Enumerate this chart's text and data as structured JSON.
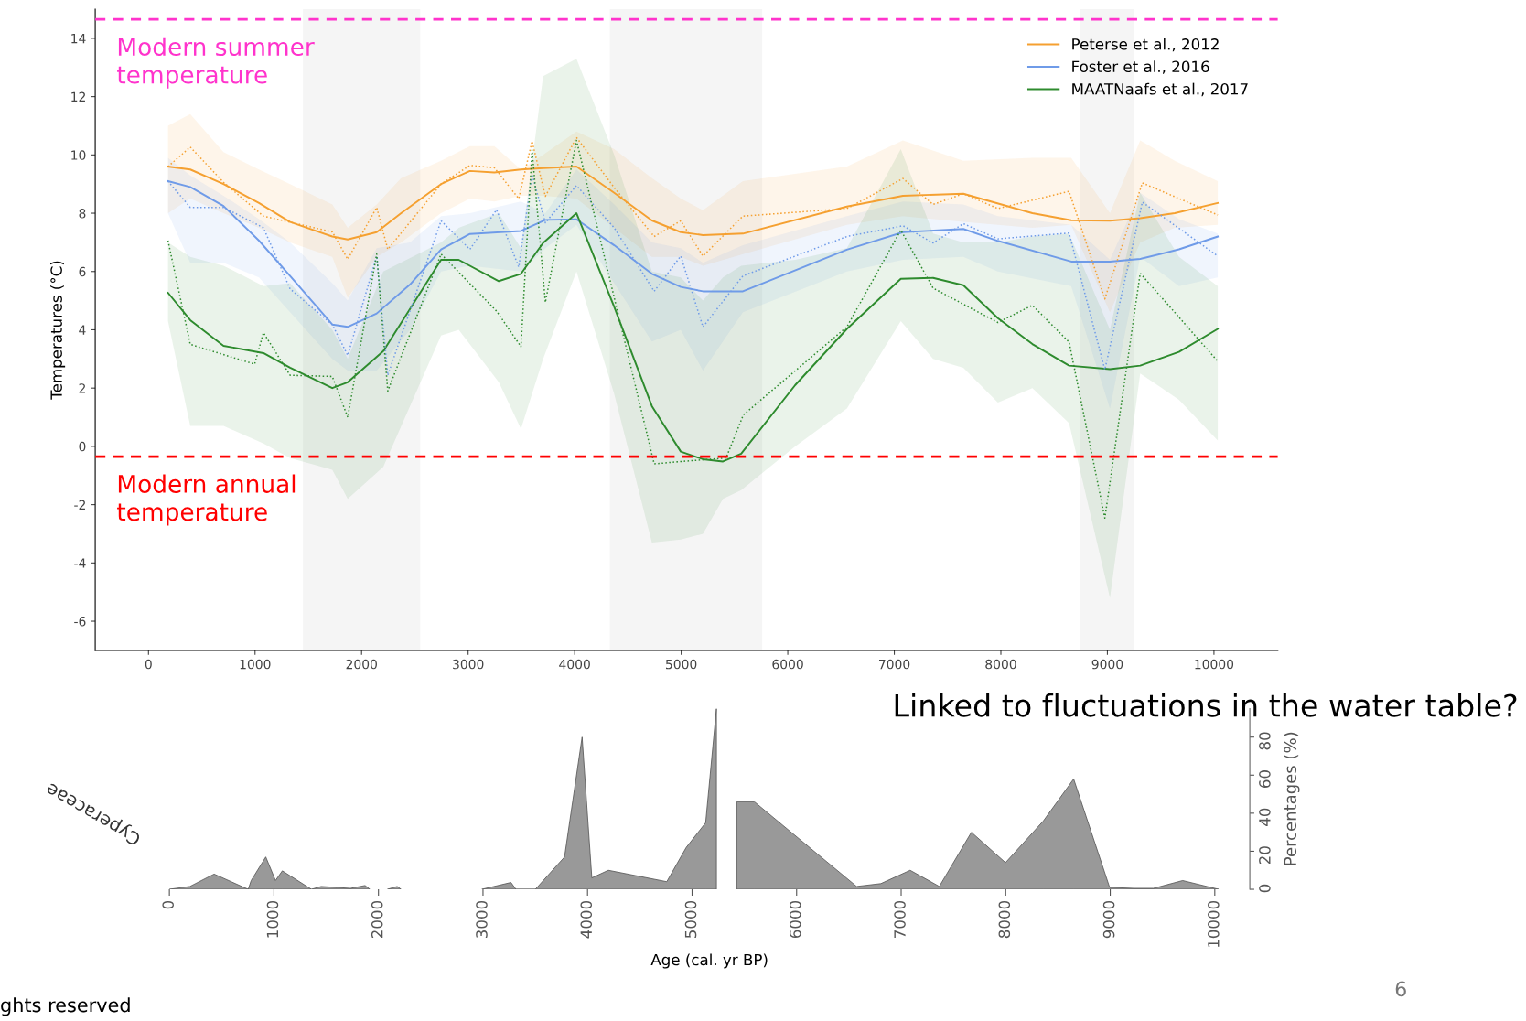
{
  "chart_data": [
    {
      "type": "line",
      "ylabel": "Temperatures (°C)",
      "xlim": [
        -500,
        10600
      ],
      "ylim": [
        -7,
        15
      ],
      "xticks": [
        0,
        1000,
        2000,
        3000,
        4000,
        5000,
        6000,
        7000,
        8000,
        9000,
        10000
      ],
      "yticks": [
        -6,
        -4,
        -2,
        0,
        2,
        4,
        6,
        8,
        10,
        12,
        14
      ],
      "legend": "top right",
      "bands": [
        {
          "axis": "x",
          "from": 1450,
          "to": 2550,
          "color": "#f5f5f5"
        },
        {
          "axis": "x",
          "from": 4330,
          "to": 5760,
          "color": "#f5f5f5"
        },
        {
          "axis": "x",
          "from": 8740,
          "to": 9250,
          "color": "#f5f5f5"
        }
      ],
      "ref_lines": [
        {
          "axis": "y",
          "value": 14.65,
          "label": "Modern summer\ntemperature",
          "color": "#ff33cc",
          "line_style": "dashed"
        },
        {
          "axis": "y",
          "value": -0.35,
          "label": "Modern annual\ntemperature",
          "color": "#ff0000",
          "line_style": "dashed"
        }
      ],
      "series": [
        {
          "name": "Peterse et al., 2012",
          "color": "#f5a030",
          "line_style": "solid",
          "x": [
            183,
            392,
            704,
            1037,
            1329,
            1725,
            1870,
            2142,
            2371,
            2746,
            3017,
            3246,
            3496,
            3704,
            4017,
            4371,
            4725,
            4996,
            5204,
            5579,
            6555,
            7081,
            7648,
            8296,
            8660,
            9024,
            9308,
            9632,
            10036
          ],
          "values": [
            9.6,
            9.5,
            9.0,
            8.35,
            7.7,
            7.2,
            7.1,
            7.35,
            8.0,
            9.0,
            9.45,
            9.4,
            9.5,
            9.55,
            9.6,
            8.7,
            7.75,
            7.35,
            7.25,
            7.3,
            8.23,
            8.6,
            8.67,
            8.0,
            7.76,
            7.74,
            7.83,
            8.0,
            8.35
          ],
          "upper": [
            11.0,
            11.4,
            10.1,
            9.5,
            9.0,
            8.3,
            7.5,
            8.3,
            9.2,
            9.8,
            10.3,
            10.3,
            9.5,
            10.0,
            10.8,
            10.2,
            9.2,
            8.5,
            8.1,
            9.1,
            9.6,
            10.5,
            9.8,
            9.9,
            9.9,
            8.0,
            10.5,
            9.8,
            9.1
          ],
          "lower": [
            8.0,
            8.5,
            8.0,
            7.5,
            7.0,
            6.5,
            5.1,
            6.5,
            7.0,
            8.0,
            8.5,
            8.4,
            8.6,
            8.6,
            8.5,
            7.5,
            6.5,
            6.5,
            6.2,
            6.6,
            7.6,
            7.9,
            7.7,
            7.5,
            7.6,
            4.6,
            7.0,
            7.5,
            7.6
          ]
        },
        {
          "name": "Foster et al., 2016",
          "color": "#6f9be8",
          "line_style": "solid",
          "x": [
            183,
            392,
            704,
            1037,
            1329,
            1725,
            1870,
            2142,
            2454,
            2746,
            3017,
            3496,
            3725,
            4017,
            4371,
            4725,
            4996,
            5204,
            5579,
            6555,
            7081,
            7648,
            7972,
            8660,
            9024,
            9308,
            9672,
            10036
          ],
          "values": [
            9.1,
            8.9,
            8.25,
            7.06,
            5.85,
            4.18,
            4.1,
            4.56,
            5.55,
            6.76,
            7.29,
            7.39,
            7.77,
            7.79,
            6.9,
            5.92,
            5.47,
            5.32,
            5.32,
            6.75,
            7.35,
            7.46,
            7.05,
            6.34,
            6.34,
            6.43,
            6.76,
            7.2
          ],
          "upper": [
            9.9,
            9.3,
            8.6,
            7.8,
            7.0,
            5.6,
            5.0,
            6.8,
            7.0,
            7.9,
            8.0,
            8.4,
            8.0,
            9.5,
            8.3,
            7.0,
            6.8,
            6.3,
            6.9,
            7.9,
            8.4,
            8.3,
            7.9,
            7.6,
            6.4,
            8.7,
            7.8,
            7.3
          ],
          "lower": [
            8.0,
            6.3,
            6.3,
            5.8,
            4.6,
            3.0,
            2.6,
            2.6,
            4.0,
            6.0,
            6.2,
            6.0,
            6.8,
            7.6,
            5.6,
            3.6,
            4.0,
            2.6,
            4.6,
            6.0,
            6.4,
            6.5,
            6.0,
            5.5,
            1.3,
            6.5,
            5.5,
            5.8
          ]
        },
        {
          "name": "MAATNaafs et al., 2017",
          "color": "#2e8b2e",
          "line_style": "solid",
          "x": [
            183,
            392,
            704,
            1079,
            1329,
            1725,
            1870,
            2204,
            2746,
            2912,
            3288,
            3496,
            3704,
            4017,
            4371,
            4725,
            4996,
            5204,
            5392,
            5563,
            6069,
            6555,
            7061,
            7364,
            7648,
            7972,
            8296,
            8640,
            9024,
            9308,
            9672,
            10036
          ],
          "values": [
            5.27,
            4.33,
            3.45,
            3.2,
            2.7,
            2.0,
            2.2,
            3.27,
            6.4,
            6.4,
            5.67,
            5.92,
            6.98,
            8.0,
            4.79,
            1.38,
            -0.18,
            -0.44,
            -0.52,
            -0.25,
            2.1,
            4.03,
            5.75,
            5.78,
            5.53,
            4.4,
            3.51,
            2.77,
            2.65,
            2.77,
            3.24,
            4.03
          ],
          "upper": [
            7.0,
            6.5,
            6.2,
            5.5,
            5.6,
            4.0,
            3.0,
            6.0,
            7.0,
            7.5,
            8.0,
            6.8,
            12.7,
            13.3,
            10.0,
            6.0,
            5.8,
            5.0,
            5.8,
            6.2,
            6.4,
            6.8,
            10.2,
            7.3,
            7.0,
            7.0,
            7.2,
            7.3,
            4.0,
            8.7,
            6.5,
            5.5
          ],
          "lower": [
            4.3,
            0.7,
            0.7,
            0.1,
            -0.4,
            -0.8,
            -1.8,
            -0.7,
            3.8,
            4.0,
            2.2,
            0.6,
            3.0,
            6.0,
            1.8,
            -3.3,
            -3.2,
            -3.0,
            -1.8,
            -1.5,
            0.0,
            1.3,
            4.3,
            3.0,
            2.7,
            1.5,
            2.0,
            0.8,
            -5.2,
            2.5,
            1.6,
            0.2
          ]
        },
        {
          "color": "#f5a030",
          "line_style": "dotted",
          "x": [
            183,
            392,
            704,
            1079,
            1725,
            1870,
            2142,
            2246,
            2746,
            3017,
            3246,
            3475,
            3600,
            3725,
            4017,
            4371,
            4746,
            4996,
            5204,
            5579,
            6555,
            7081,
            7364,
            7648,
            7972,
            8640,
            8976,
            9328,
            10036
          ],
          "values": [
            9.6,
            10.27,
            9.06,
            7.9,
            7.36,
            6.42,
            8.2,
            6.76,
            9.0,
            9.64,
            9.56,
            8.5,
            10.47,
            8.58,
            10.6,
            8.88,
            7.2,
            7.74,
            6.53,
            7.9,
            8.16,
            9.19,
            8.3,
            8.67,
            8.16,
            8.75,
            5.06,
            9.04,
            7.94
          ]
        },
        {
          "color": "#6f9be8",
          "line_style": "dotted",
          "x": [
            183,
            392,
            704,
            1079,
            1329,
            1725,
            1870,
            2142,
            2246,
            2746,
            3017,
            3267,
            3475,
            3600,
            3725,
            4017,
            4371,
            4746,
            4996,
            5204,
            5579,
            6555,
            7081,
            7364,
            7648,
            7972,
            8640,
            8976,
            9328,
            10036
          ],
          "values": [
            9.1,
            8.2,
            8.2,
            7.5,
            5.4,
            4.18,
            3.12,
            6.53,
            2.44,
            7.74,
            6.76,
            8.12,
            6.15,
            9.33,
            7.67,
            8.95,
            7.5,
            5.32,
            6.53,
            4.1,
            5.85,
            7.2,
            7.57,
            6.98,
            7.64,
            7.12,
            7.32,
            2.63,
            8.38,
            6.53
          ]
        },
        {
          "color": "#2e8b2e",
          "line_style": "dotted",
          "x": [
            183,
            392,
            996,
            1079,
            1329,
            1725,
            1870,
            2142,
            2246,
            2746,
            3267,
            3496,
            3600,
            3725,
            4017,
            4746,
            4996,
            5421,
            5583,
            6555,
            7061,
            7364,
            7972,
            8296,
            8640,
            8976,
            9308,
            10036
          ],
          "values": [
            7.06,
            3.5,
            2.82,
            3.9,
            2.44,
            2.4,
            1.0,
            6.6,
            1.9,
            6.6,
            4.64,
            3.42,
            10.17,
            4.94,
            10.5,
            -0.6,
            -0.52,
            -0.4,
            1.08,
            4.1,
            7.42,
            5.43,
            4.25,
            4.84,
            3.58,
            -2.46,
            5.94,
            2.92
          ]
        }
      ]
    },
    {
      "type": "area",
      "title": "Cyperaceae",
      "xlabel": "Age (cal. yr BP)",
      "ylabel": "Percentages (%)",
      "color": "#999999",
      "xlim": [
        0,
        10335
      ],
      "ylim": [
        0,
        95
      ],
      "xticks": [
        0,
        1000,
        2000,
        3000,
        4000,
        5000,
        6000,
        7000,
        8000,
        9000,
        10000
      ],
      "yticks": [
        0,
        20,
        40,
        60,
        80
      ],
      "x": [
        0,
        196,
        428,
        754,
        782,
        922,
        1015,
        1080,
        1359,
        1452,
        1732,
        1872,
        1918,
        2000,
        2086,
        2179,
        2216,
        2600,
        2989,
        3268,
        3315,
        3501,
        3780,
        3948,
        4041,
        4199,
        4758,
        4944,
        5130,
        5233,
        5330,
        5428,
        5596,
        6574,
        6806,
        7086,
        7365,
        7672,
        7998,
        8361,
        8650,
        8994,
        9227,
        9413,
        9693,
        10037
      ],
      "values": [
        0,
        1.5,
        8,
        0,
        4.6,
        17,
        4.6,
        9.7,
        0,
        1.5,
        0.5,
        2,
        0,
        null,
        0,
        1.5,
        0,
        null,
        0,
        3.6,
        0,
        0,
        17,
        80,
        6,
        10,
        4,
        22,
        35,
        95,
        null,
        46,
        46,
        1.5,
        3,
        10,
        1.5,
        30,
        14,
        36,
        58,
        1,
        0.5,
        0.5,
        4.6,
        0
      ],
      "annotations": [
        "Linked to fluctuations in the water table?",
        "6",
        "ghts reserved"
      ]
    }
  ]
}
